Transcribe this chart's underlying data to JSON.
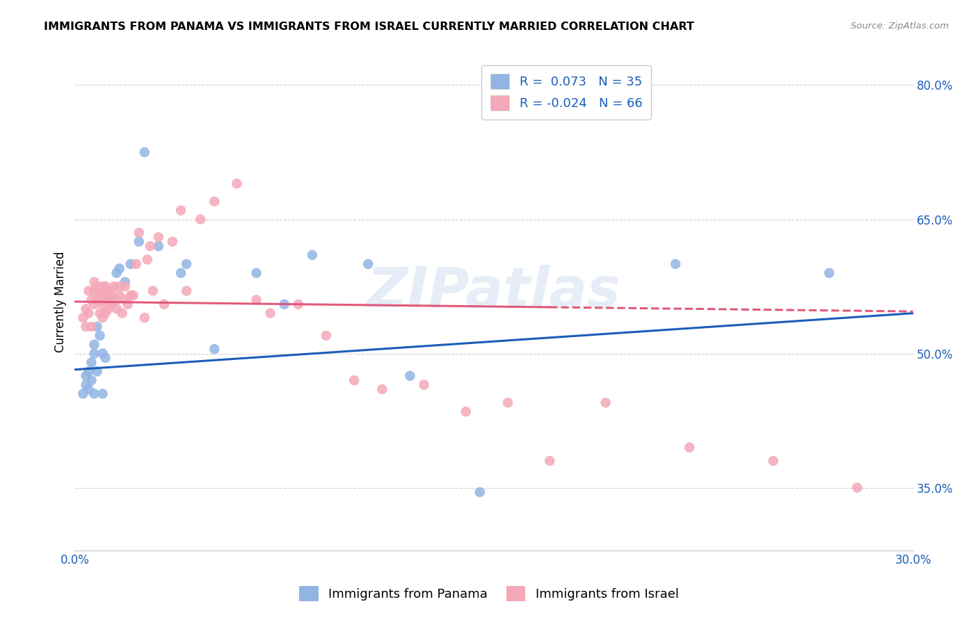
{
  "title": "IMMIGRANTS FROM PANAMA VS IMMIGRANTS FROM ISRAEL CURRENTLY MARRIED CORRELATION CHART",
  "source": "Source: ZipAtlas.com",
  "ylabel": "Currently Married",
  "xlim": [
    0.0,
    0.3
  ],
  "ylim": [
    0.28,
    0.835
  ],
  "yticks": [
    0.35,
    0.5,
    0.65,
    0.8
  ],
  "ytick_labels": [
    "35.0%",
    "50.0%",
    "65.0%",
    "80.0%"
  ],
  "xticks": [
    0.0,
    0.05,
    0.1,
    0.15,
    0.2,
    0.25,
    0.3
  ],
  "xtick_labels": [
    "0.0%",
    "",
    "",
    "",
    "",
    "",
    "30.0%"
  ],
  "legend_blue_r": "R =  0.073",
  "legend_blue_n": "N = 35",
  "legend_pink_r": "R = -0.024",
  "legend_pink_n": "N = 66",
  "blue_color": "#92b4e3",
  "pink_color": "#f4a8b8",
  "trend_blue_color": "#1a5eb8",
  "trend_pink_color": "#e05a7a",
  "watermark": "ZIPatlas",
  "blue_trend_x0": 0.0,
  "blue_trend_y0": 0.482,
  "blue_trend_x1": 0.3,
  "blue_trend_y1": 0.545,
  "pink_trend_x0": 0.0,
  "pink_trend_y0": 0.558,
  "pink_trend_x1": 0.3,
  "pink_trend_y1": 0.547,
  "blue_scatter_x": [
    0.003,
    0.004,
    0.004,
    0.005,
    0.005,
    0.006,
    0.006,
    0.007,
    0.007,
    0.007,
    0.008,
    0.008,
    0.009,
    0.01,
    0.01,
    0.011,
    0.013,
    0.015,
    0.016,
    0.018,
    0.02,
    0.023,
    0.025,
    0.03,
    0.038,
    0.04,
    0.05,
    0.065,
    0.075,
    0.085,
    0.105,
    0.12,
    0.145,
    0.215,
    0.27
  ],
  "blue_scatter_y": [
    0.455,
    0.465,
    0.475,
    0.46,
    0.48,
    0.47,
    0.49,
    0.455,
    0.5,
    0.51,
    0.48,
    0.53,
    0.52,
    0.455,
    0.5,
    0.495,
    0.56,
    0.59,
    0.595,
    0.58,
    0.6,
    0.625,
    0.725,
    0.62,
    0.59,
    0.6,
    0.505,
    0.59,
    0.555,
    0.61,
    0.6,
    0.475,
    0.345,
    0.6,
    0.59
  ],
  "pink_scatter_x": [
    0.003,
    0.004,
    0.004,
    0.005,
    0.005,
    0.006,
    0.006,
    0.007,
    0.007,
    0.007,
    0.008,
    0.008,
    0.009,
    0.009,
    0.009,
    0.01,
    0.01,
    0.01,
    0.01,
    0.011,
    0.011,
    0.011,
    0.012,
    0.012,
    0.013,
    0.013,
    0.014,
    0.014,
    0.015,
    0.015,
    0.016,
    0.016,
    0.017,
    0.018,
    0.018,
    0.019,
    0.02,
    0.021,
    0.022,
    0.023,
    0.025,
    0.026,
    0.027,
    0.028,
    0.03,
    0.032,
    0.035,
    0.038,
    0.04,
    0.045,
    0.05,
    0.058,
    0.065,
    0.07,
    0.08,
    0.09,
    0.1,
    0.11,
    0.125,
    0.14,
    0.155,
    0.17,
    0.19,
    0.22,
    0.25,
    0.28
  ],
  "pink_scatter_y": [
    0.54,
    0.53,
    0.55,
    0.545,
    0.57,
    0.56,
    0.53,
    0.555,
    0.57,
    0.58,
    0.56,
    0.575,
    0.545,
    0.56,
    0.57,
    0.54,
    0.555,
    0.57,
    0.575,
    0.545,
    0.56,
    0.575,
    0.55,
    0.565,
    0.555,
    0.57,
    0.56,
    0.575,
    0.55,
    0.56,
    0.565,
    0.575,
    0.545,
    0.56,
    0.575,
    0.555,
    0.565,
    0.565,
    0.6,
    0.635,
    0.54,
    0.605,
    0.62,
    0.57,
    0.63,
    0.555,
    0.625,
    0.66,
    0.57,
    0.65,
    0.67,
    0.69,
    0.56,
    0.545,
    0.555,
    0.52,
    0.47,
    0.46,
    0.465,
    0.435,
    0.445,
    0.38,
    0.445,
    0.395,
    0.38,
    0.35
  ]
}
